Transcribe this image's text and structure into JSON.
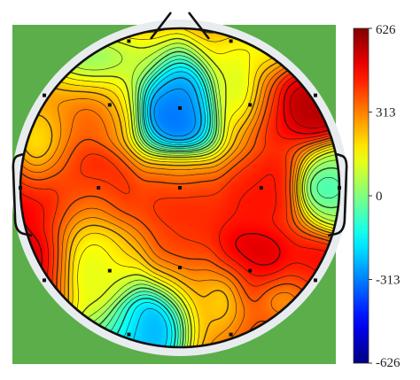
{
  "chart_data": {
    "type": "heatmap",
    "subtype": "eeg-scalp-topographic-map",
    "title": "",
    "colorbar": {
      "range": [
        -626,
        626
      ],
      "ticks": [
        626,
        313,
        0,
        -313,
        -626
      ],
      "tick_labels": [
        "626",
        "313",
        "0",
        "-313",
        "-626"
      ],
      "colormap": "jet",
      "placement": "right"
    },
    "background_color": "#5cae4a",
    "electrodes": [
      {
        "x": -0.32,
        "y": 0.92,
        "value": 380
      },
      {
        "x": 0.32,
        "y": 0.92,
        "value": 400
      },
      {
        "x": -0.85,
        "y": 0.58,
        "value": 360
      },
      {
        "x": -0.44,
        "y": 0.52,
        "value": 380
      },
      {
        "x": 0.0,
        "y": 0.5,
        "value": -300
      },
      {
        "x": 0.44,
        "y": 0.52,
        "value": 480
      },
      {
        "x": 0.85,
        "y": 0.58,
        "value": 560
      },
      {
        "x": -1.0,
        "y": 0.0,
        "value": 500
      },
      {
        "x": -0.51,
        "y": 0.0,
        "value": 460
      },
      {
        "x": 0.0,
        "y": 0.0,
        "value": 430
      },
      {
        "x": 0.51,
        "y": 0.0,
        "value": 450
      },
      {
        "x": 1.0,
        "y": 0.0,
        "value": 40
      },
      {
        "x": -0.85,
        "y": -0.58,
        "value": 560
      },
      {
        "x": -0.44,
        "y": -0.52,
        "value": 300
      },
      {
        "x": 0.0,
        "y": -0.5,
        "value": 420
      },
      {
        "x": 0.44,
        "y": -0.52,
        "value": 520
      },
      {
        "x": 0.85,
        "y": -0.58,
        "value": 460
      },
      {
        "x": -0.32,
        "y": -0.92,
        "value": -200
      },
      {
        "x": 0.32,
        "y": -0.92,
        "value": 420
      }
    ],
    "regions": [
      {
        "x": 0.0,
        "y": 0.55,
        "value": -330,
        "rx": 0.3,
        "ry": 0.34
      },
      {
        "x": -0.24,
        "y": -0.86,
        "value": -260,
        "rx": 0.34,
        "ry": 0.3
      },
      {
        "x": 0.93,
        "y": 0.0,
        "value": -60,
        "rx": 0.16,
        "ry": 0.14
      },
      {
        "x": -0.55,
        "y": 0.82,
        "value": 40,
        "rx": 0.45,
        "ry": 0.22
      },
      {
        "x": 0.55,
        "y": 0.88,
        "value": 180,
        "rx": 0.3,
        "ry": 0.18
      },
      {
        "x": -0.55,
        "y": -0.55,
        "value": 130,
        "rx": 0.24,
        "ry": 0.45
      },
      {
        "x": 0.25,
        "y": -0.72,
        "value": 220,
        "rx": 0.18,
        "ry": 0.24
      },
      {
        "x": 0.65,
        "y": -0.72,
        "value": 300,
        "rx": 0.22,
        "ry": 0.18
      },
      {
        "x": -0.9,
        "y": 0.3,
        "value": 200,
        "rx": 0.2,
        "ry": 0.28
      },
      {
        "x": 0.35,
        "y": 0.65,
        "value": 120,
        "rx": 0.18,
        "ry": 0.32
      }
    ]
  }
}
